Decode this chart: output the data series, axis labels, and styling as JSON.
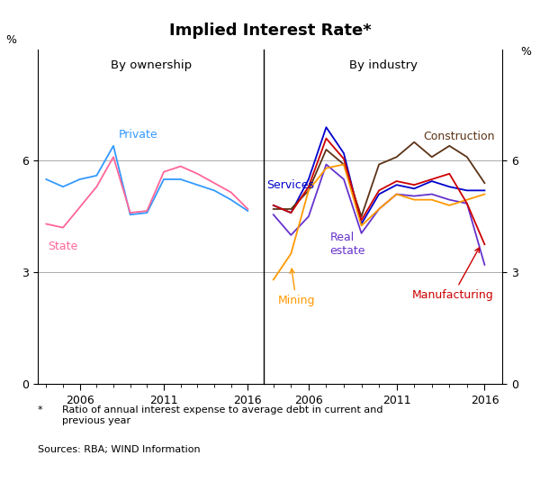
{
  "title": "Implied Interest Rate*",
  "left_subtitle": "By ownership",
  "right_subtitle": "By industry",
  "footnote_star": "*",
  "footnote_text": "Ratio of annual interest expense to average debt in current and\nprevious year",
  "footnote_sources": "Sources: RBA; WIND Information",
  "ylim": [
    0,
    9
  ],
  "yticks": [
    0,
    3,
    6
  ],
  "ylabel": "%",
  "years_left": [
    2004,
    2005,
    2006,
    2007,
    2008,
    2009,
    2010,
    2011,
    2012,
    2013,
    2014,
    2015,
    2016
  ],
  "private": [
    5.5,
    5.3,
    5.5,
    5.6,
    6.4,
    4.55,
    4.6,
    5.5,
    5.5,
    5.35,
    5.2,
    4.95,
    4.65
  ],
  "state": [
    4.3,
    4.2,
    4.75,
    5.3,
    6.1,
    4.6,
    4.65,
    5.7,
    5.85,
    5.65,
    5.4,
    5.15,
    4.7
  ],
  "years_right": [
    2004,
    2005,
    2006,
    2007,
    2008,
    2009,
    2010,
    2011,
    2012,
    2013,
    2014,
    2015,
    2016
  ],
  "services": [
    4.8,
    4.6,
    5.5,
    6.9,
    6.2,
    4.3,
    5.1,
    5.35,
    5.25,
    5.45,
    5.3,
    5.2,
    5.2
  ],
  "construction": [
    4.7,
    4.7,
    5.2,
    6.3,
    5.9,
    4.5,
    5.9,
    6.1,
    6.5,
    6.1,
    6.4,
    6.1,
    5.4
  ],
  "real_estate": [
    4.55,
    4.0,
    4.5,
    5.9,
    5.5,
    4.05,
    4.7,
    5.1,
    5.05,
    5.1,
    4.95,
    4.85,
    3.2
  ],
  "mining": [
    2.8,
    3.5,
    5.2,
    5.8,
    5.9,
    4.25,
    4.7,
    5.1,
    4.95,
    4.95,
    4.8,
    4.95,
    5.1
  ],
  "manufacturing": [
    4.8,
    4.6,
    5.3,
    6.6,
    6.05,
    4.4,
    5.2,
    5.45,
    5.35,
    5.5,
    5.65,
    4.85,
    3.75
  ],
  "color_private": "#3399ff",
  "color_state": "#ff6699",
  "color_services": "#0000cc",
  "color_construction": "#5c3317",
  "color_real_estate": "#6633cc",
  "color_mining": "#ff9900",
  "color_manufacturing": "#cc0000",
  "left_xtick_years": [
    2006,
    2011,
    2016
  ],
  "right_xtick_years": [
    2006,
    2011,
    2016
  ]
}
